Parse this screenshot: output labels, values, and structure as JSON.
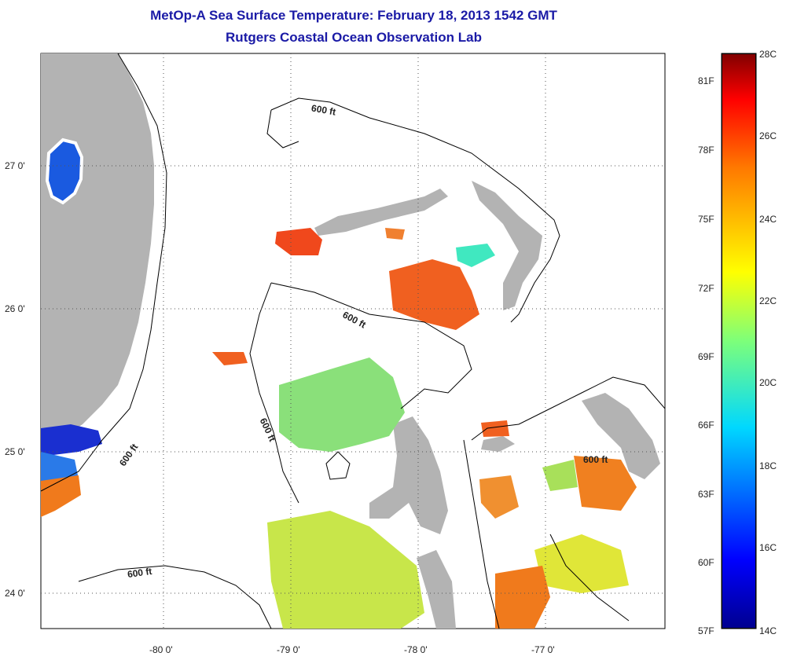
{
  "title_line1": "MetOp-A Sea Surface Temperature:  February 18, 2013 1542 GMT",
  "title_line2": "Rutgers Coastal Ocean Observation Lab",
  "axes": {
    "lat_labels": [
      "27 0'",
      "26 0'",
      "25 0'",
      "24 0'"
    ],
    "lon_labels": [
      "-80 0'",
      "-79 0'",
      "-78 0'",
      "-77 0'"
    ]
  },
  "contour_labels": [
    "600 ft",
    "600 ft",
    "600 ft",
    "600 ft",
    "600 ft",
    "600 ft"
  ],
  "colorbar": {
    "celsius": [
      "28C",
      "26C",
      "24C",
      "22C",
      "20C",
      "18C",
      "16C",
      "14C"
    ],
    "fahrenheit": [
      "81F",
      "78F",
      "75F",
      "72F",
      "69F",
      "66F",
      "63F",
      "60F",
      "57F"
    ],
    "range_c": [
      14,
      28
    ]
  },
  "colors": {
    "land": "#b3b3b3",
    "title": "#1a1aa6",
    "warm": "#f05a1c",
    "mid": "#c8e64a",
    "cool": "#2a5ad8"
  }
}
